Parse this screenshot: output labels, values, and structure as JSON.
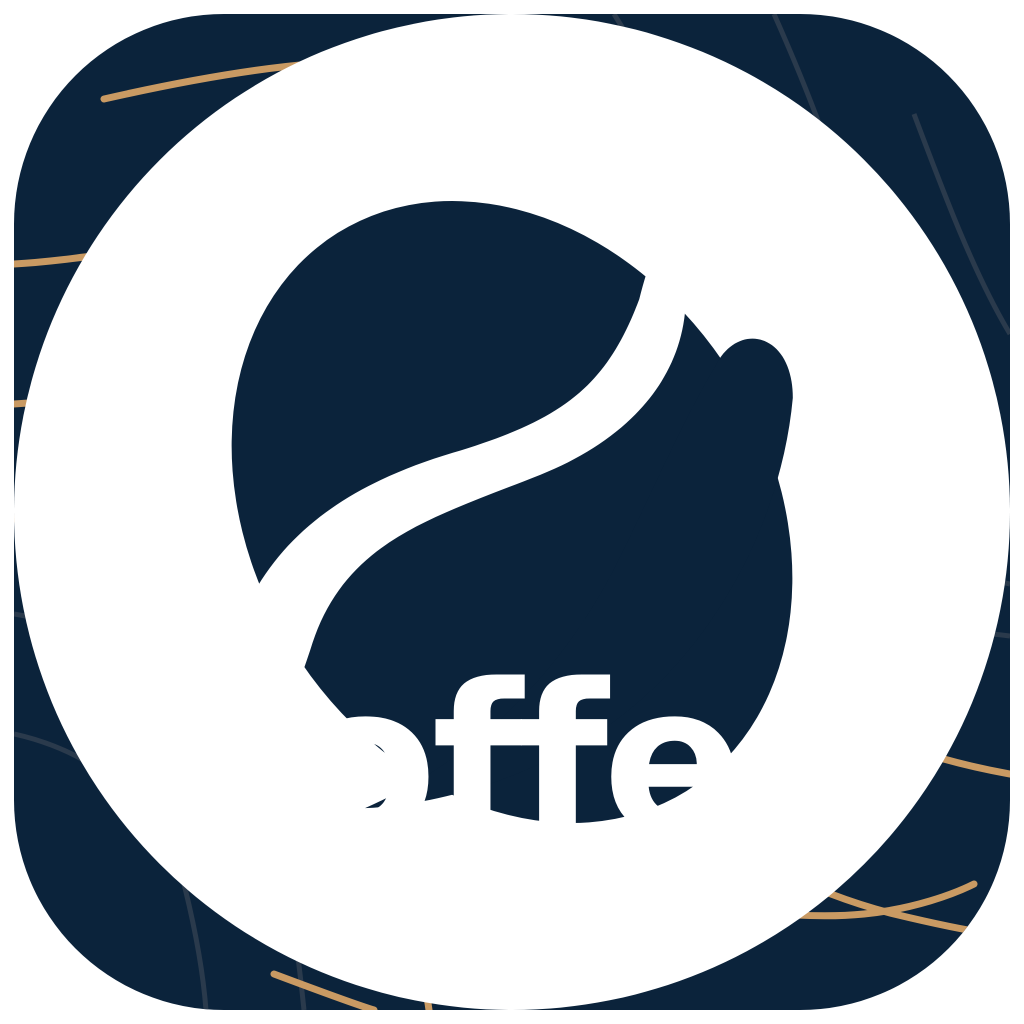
{
  "app": {
    "name": "goffee"
  },
  "icons": {
    "background": "topographic-lines-pattern",
    "emblem": "coffee-bean-icon"
  },
  "colors": {
    "background": "#0B233B",
    "accent_lines": "#C99A63",
    "faint_lines": "#2A3A4C",
    "foreground": "#FFFFFF"
  }
}
